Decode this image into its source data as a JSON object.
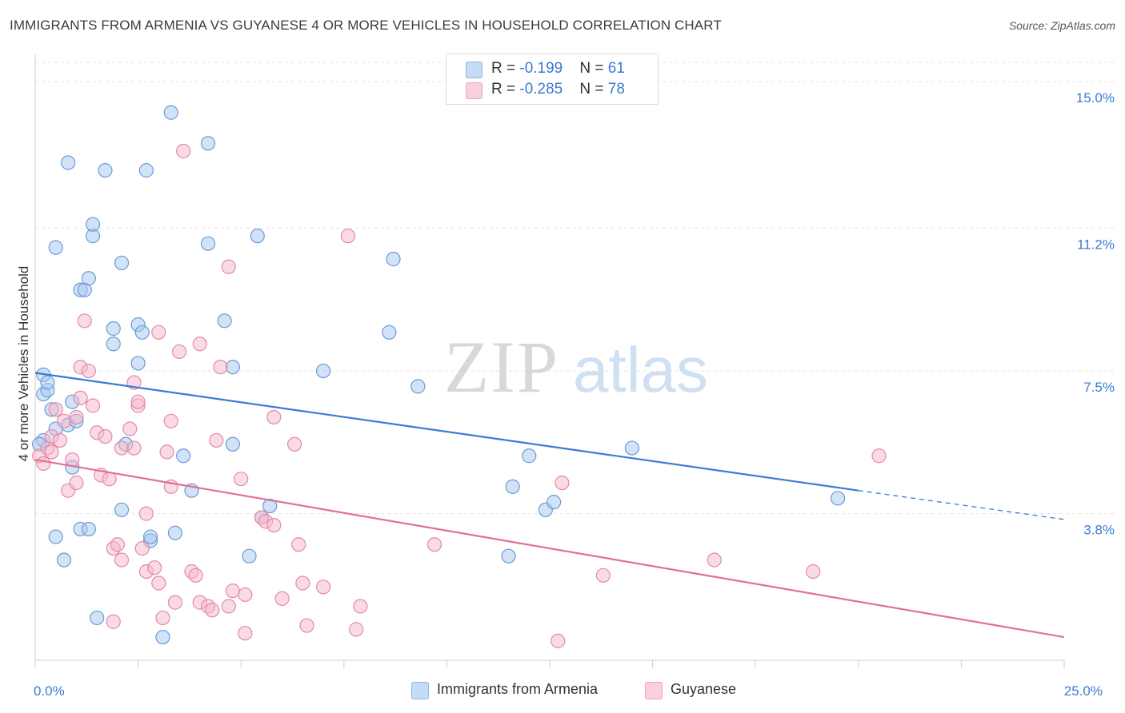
{
  "title": "IMMIGRANTS FROM ARMENIA VS GUYANESE 4 OR MORE VEHICLES IN HOUSEHOLD CORRELATION CHART",
  "source": "Source: ZipAtlas.com",
  "watermark": {
    "zip": "ZIP",
    "atlas": "atlas"
  },
  "legend_top": [
    {
      "r_label": "R = ",
      "r_value": "-0.199",
      "n_label": "N = ",
      "n_value": "61",
      "color": "#a8c8f0"
    },
    {
      "r_label": "R = ",
      "r_value": "-0.285",
      "n_label": "N = ",
      "n_value": "78",
      "color": "#f5b8cb"
    }
  ],
  "chart_data": {
    "type": "scatter",
    "xlabel": "",
    "ylabel": "4 or more Vehicles in Household",
    "xlim": [
      0,
      25
    ],
    "ylim": [
      0,
      15.5
    ],
    "x_tick_labels": [
      {
        "value": 0,
        "label": "0.0%"
      },
      {
        "value": 25,
        "label": "25.0%"
      }
    ],
    "y_tick_labels": [
      {
        "value": 3.8,
        "label": "3.8%"
      },
      {
        "value": 7.5,
        "label": "7.5%"
      },
      {
        "value": 11.2,
        "label": "11.2%"
      },
      {
        "value": 15.0,
        "label": "15.0%"
      }
    ],
    "grid": true,
    "legend_position": "bottom",
    "series": [
      {
        "name": "Immigrants from Armenia",
        "color": "#a8c8f0",
        "stroke": "#6a9ad8",
        "line_color": "#3a7bd5",
        "trend": {
          "x0": 0,
          "y0": 7.45,
          "x1": 20,
          "y1": 4.4,
          "dash_to_x": 25,
          "dash_to_y": 3.65
        },
        "points": [
          [
            0.2,
            5.7
          ],
          [
            0.2,
            6.9
          ],
          [
            0.2,
            7.4
          ],
          [
            0.3,
            7.0
          ],
          [
            0.3,
            7.2
          ],
          [
            0.4,
            6.5
          ],
          [
            0.5,
            6.0
          ],
          [
            0.5,
            10.7
          ],
          [
            0.5,
            3.2
          ],
          [
            0.7,
            2.6
          ],
          [
            0.8,
            6.1
          ],
          [
            0.8,
            12.9
          ],
          [
            0.9,
            6.7
          ],
          [
            0.9,
            5.0
          ],
          [
            1.0,
            6.2
          ],
          [
            1.1,
            9.6
          ],
          [
            1.1,
            3.4
          ],
          [
            1.2,
            9.6
          ],
          [
            1.3,
            9.9
          ],
          [
            1.3,
            3.4
          ],
          [
            1.4,
            11.0
          ],
          [
            1.4,
            11.3
          ],
          [
            1.5,
            1.1
          ],
          [
            1.7,
            12.7
          ],
          [
            1.9,
            8.6
          ],
          [
            1.9,
            8.2
          ],
          [
            2.1,
            10.3
          ],
          [
            2.1,
            3.9
          ],
          [
            2.2,
            5.6
          ],
          [
            2.5,
            8.7
          ],
          [
            2.5,
            7.7
          ],
          [
            2.6,
            8.5
          ],
          [
            2.7,
            12.7
          ],
          [
            2.8,
            3.1
          ],
          [
            2.8,
            3.2
          ],
          [
            3.3,
            14.2
          ],
          [
            3.1,
            0.6
          ],
          [
            3.6,
            5.3
          ],
          [
            3.8,
            4.4
          ],
          [
            3.4,
            3.3
          ],
          [
            4.2,
            13.4
          ],
          [
            4.2,
            10.8
          ],
          [
            4.6,
            8.8
          ],
          [
            4.8,
            7.6
          ],
          [
            4.8,
            5.6
          ],
          [
            5.2,
            2.7
          ],
          [
            5.4,
            11.0
          ],
          [
            5.5,
            3.7
          ],
          [
            5.7,
            4.0
          ],
          [
            7.0,
            7.5
          ],
          [
            8.7,
            10.4
          ],
          [
            8.6,
            8.5
          ],
          [
            9.3,
            7.1
          ],
          [
            11.5,
            2.7
          ],
          [
            11.6,
            4.5
          ],
          [
            12.0,
            5.3
          ],
          [
            12.4,
            3.9
          ],
          [
            12.6,
            4.1
          ],
          [
            14.5,
            5.5
          ],
          [
            19.5,
            4.2
          ],
          [
            0.1,
            5.6
          ]
        ]
      },
      {
        "name": "Guyanese",
        "color": "#f5b8cb",
        "stroke": "#e38aa6",
        "line_color": "#e07098",
        "trend": {
          "x0": 0,
          "y0": 5.2,
          "x1": 25,
          "y1": 0.6
        },
        "points": [
          [
            0.1,
            5.3
          ],
          [
            0.2,
            5.1
          ],
          [
            0.3,
            5.5
          ],
          [
            0.4,
            5.4
          ],
          [
            0.4,
            5.8
          ],
          [
            0.5,
            6.5
          ],
          [
            0.6,
            5.7
          ],
          [
            0.7,
            6.2
          ],
          [
            0.8,
            4.4
          ],
          [
            0.9,
            5.2
          ],
          [
            1.0,
            4.6
          ],
          [
            1.0,
            6.3
          ],
          [
            1.1,
            7.6
          ],
          [
            1.1,
            6.8
          ],
          [
            1.2,
            8.8
          ],
          [
            1.3,
            7.5
          ],
          [
            1.4,
            6.6
          ],
          [
            1.5,
            5.9
          ],
          [
            1.6,
            4.8
          ],
          [
            1.7,
            5.8
          ],
          [
            1.8,
            4.7
          ],
          [
            1.9,
            1.0
          ],
          [
            1.9,
            2.9
          ],
          [
            2.0,
            3.0
          ],
          [
            2.1,
            5.5
          ],
          [
            2.1,
            2.6
          ],
          [
            2.3,
            6.0
          ],
          [
            2.4,
            5.5
          ],
          [
            2.4,
            7.2
          ],
          [
            2.5,
            6.6
          ],
          [
            2.5,
            6.7
          ],
          [
            2.6,
            2.9
          ],
          [
            2.7,
            2.3
          ],
          [
            2.7,
            3.8
          ],
          [
            2.9,
            2.4
          ],
          [
            3.0,
            2.0
          ],
          [
            3.0,
            8.5
          ],
          [
            3.1,
            1.1
          ],
          [
            3.2,
            5.4
          ],
          [
            3.3,
            6.2
          ],
          [
            3.3,
            4.5
          ],
          [
            3.4,
            1.5
          ],
          [
            3.5,
            8.0
          ],
          [
            3.6,
            13.2
          ],
          [
            3.8,
            2.3
          ],
          [
            3.9,
            2.2
          ],
          [
            4.0,
            8.2
          ],
          [
            4.0,
            1.5
          ],
          [
            4.2,
            1.4
          ],
          [
            4.3,
            1.3
          ],
          [
            4.4,
            5.7
          ],
          [
            4.5,
            7.6
          ],
          [
            4.7,
            1.4
          ],
          [
            4.7,
            10.2
          ],
          [
            4.8,
            1.8
          ],
          [
            5.0,
            4.7
          ],
          [
            5.1,
            0.7
          ],
          [
            5.1,
            1.7
          ],
          [
            5.5,
            3.7
          ],
          [
            5.6,
            3.6
          ],
          [
            5.8,
            3.5
          ],
          [
            5.8,
            6.3
          ],
          [
            6.0,
            1.6
          ],
          [
            6.3,
            5.6
          ],
          [
            6.4,
            3.0
          ],
          [
            6.5,
            2.0
          ],
          [
            6.6,
            0.9
          ],
          [
            7.0,
            1.9
          ],
          [
            7.6,
            11.0
          ],
          [
            7.8,
            0.8
          ],
          [
            7.9,
            1.4
          ],
          [
            9.7,
            3.0
          ],
          [
            12.7,
            0.5
          ],
          [
            12.8,
            4.6
          ],
          [
            13.8,
            2.2
          ],
          [
            16.5,
            2.6
          ],
          [
            18.9,
            2.3
          ],
          [
            20.5,
            5.3
          ]
        ]
      }
    ]
  }
}
